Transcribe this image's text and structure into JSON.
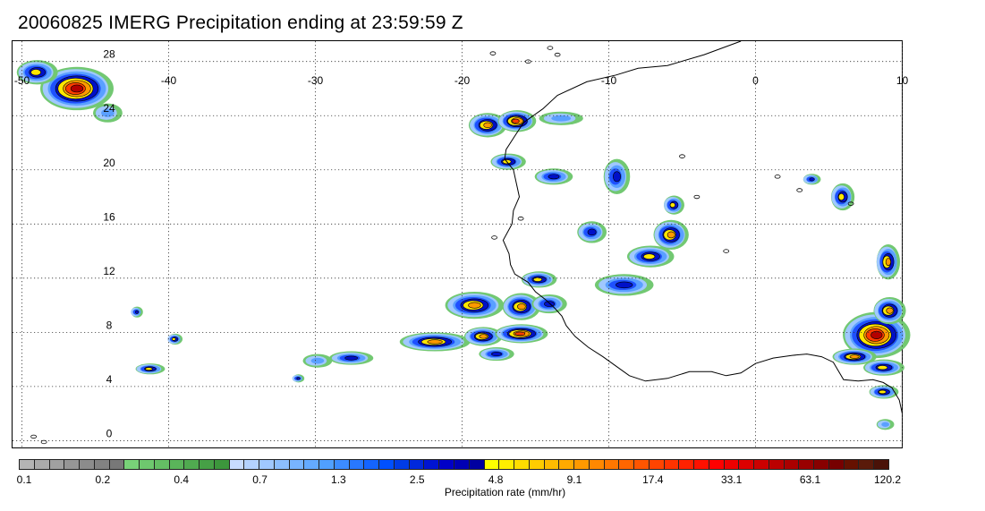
{
  "title": "20060825 IMERG Precipitation ending at 23:59:59 Z",
  "map": {
    "lon_labels": [
      "-50",
      "-40",
      "-30",
      "-20",
      "-10",
      "0",
      "10"
    ],
    "lon_values": [
      -50,
      -40,
      -30,
      -20,
      -10,
      0,
      10
    ],
    "lat_labels": [
      "28",
      "24",
      "20",
      "16",
      "12",
      "8",
      "4",
      "0"
    ],
    "lat_values": [
      28,
      24,
      20,
      16,
      12,
      8,
      4,
      0
    ],
    "lon_range": [
      -50,
      10
    ],
    "lat_range": [
      -0.5,
      29.5
    ],
    "gridlines": "dotted",
    "coastline_color": "#000000",
    "coastline": [
      [
        -1.0,
        29.5
      ],
      [
        -3.5,
        28.5
      ],
      [
        -6.0,
        27.7
      ],
      [
        -8.0,
        27.5
      ],
      [
        -9.5,
        27.0
      ],
      [
        -11.5,
        26.5
      ],
      [
        -13.5,
        25.5
      ],
      [
        -14.5,
        24.5
      ],
      [
        -15.8,
        23.5
      ],
      [
        -16.4,
        22.5
      ],
      [
        -17.0,
        21.5
      ],
      [
        -17.1,
        20.8
      ],
      [
        -16.5,
        20.0
      ],
      [
        -16.3,
        19.0
      ],
      [
        -16.1,
        18.0
      ],
      [
        -16.5,
        17.0
      ],
      [
        -16.6,
        16.0
      ],
      [
        -17.2,
        14.8
      ],
      [
        -16.8,
        13.8
      ],
      [
        -16.7,
        13.0
      ],
      [
        -16.4,
        12.3
      ],
      [
        -15.5,
        11.7
      ],
      [
        -15.0,
        11.0
      ],
      [
        -14.3,
        10.4
      ],
      [
        -13.7,
        9.8
      ],
      [
        -13.2,
        9.2
      ],
      [
        -12.9,
        8.5
      ],
      [
        -12.3,
        7.7
      ],
      [
        -11.4,
        6.9
      ],
      [
        -10.4,
        6.2
      ],
      [
        -9.5,
        5.5
      ],
      [
        -8.6,
        4.8
      ],
      [
        -7.5,
        4.4
      ],
      [
        -6.0,
        4.6
      ],
      [
        -4.5,
        5.1
      ],
      [
        -3.0,
        5.1
      ],
      [
        -2.0,
        4.8
      ],
      [
        -1.0,
        5.0
      ],
      [
        0.0,
        5.7
      ],
      [
        1.2,
        6.1
      ],
      [
        2.5,
        6.3
      ],
      [
        3.5,
        6.4
      ],
      [
        4.5,
        6.2
      ],
      [
        5.3,
        5.8
      ],
      [
        6.0,
        4.5
      ],
      [
        7.0,
        4.4
      ],
      [
        8.0,
        4.5
      ],
      [
        8.7,
        4.3
      ],
      [
        9.3,
        3.9
      ],
      [
        9.8,
        3.0
      ],
      [
        10.0,
        2.0
      ]
    ],
    "islands": [
      [
        -17.8,
        15.0
      ],
      [
        -16.0,
        16.4
      ],
      [
        -13.5,
        28.5
      ],
      [
        -15.5,
        28.0
      ],
      [
        -17.9,
        28.6
      ],
      [
        -14.0,
        29.0
      ],
      [
        -5.0,
        21.0
      ],
      [
        -4.0,
        18.0
      ],
      [
        1.5,
        19.5
      ],
      [
        3.0,
        18.5
      ],
      [
        -2.0,
        14.0
      ],
      [
        6.5,
        17.5
      ],
      [
        -49.2,
        0.3
      ],
      [
        -48.5,
        -0.1
      ]
    ],
    "rain_cells": [
      {
        "lon": -46.3,
        "lat": 26.0,
        "rx": 2.5,
        "ry": 1.6,
        "level": 9
      },
      {
        "lon": -49.0,
        "lat": 27.2,
        "rx": 1.4,
        "ry": 0.9,
        "level": 6
      },
      {
        "lon": -44.2,
        "lat": 24.2,
        "rx": 1.0,
        "ry": 0.7,
        "level": 3
      },
      {
        "lon": -18.3,
        "lat": 23.3,
        "rx": 1.3,
        "ry": 0.9,
        "level": 7
      },
      {
        "lon": -16.3,
        "lat": 23.6,
        "rx": 1.3,
        "ry": 0.8,
        "level": 8
      },
      {
        "lon": -13.3,
        "lat": 23.8,
        "rx": 1.5,
        "ry": 0.5,
        "level": 3
      },
      {
        "lon": -16.9,
        "lat": 20.6,
        "rx": 1.2,
        "ry": 0.6,
        "level": 6
      },
      {
        "lon": -13.8,
        "lat": 19.5,
        "rx": 1.3,
        "ry": 0.6,
        "level": 5
      },
      {
        "lon": -9.5,
        "lat": 19.5,
        "rx": 0.9,
        "ry": 1.3,
        "level": 5
      },
      {
        "lon": -5.6,
        "lat": 17.4,
        "rx": 0.7,
        "ry": 0.7,
        "level": 6
      },
      {
        "lon": -11.2,
        "lat": 15.4,
        "rx": 1.0,
        "ry": 0.8,
        "level": 5
      },
      {
        "lon": -5.8,
        "lat": 15.2,
        "rx": 1.2,
        "ry": 1.1,
        "level": 7
      },
      {
        "lon": -7.2,
        "lat": 13.6,
        "rx": 1.6,
        "ry": 0.8,
        "level": 6
      },
      {
        "lon": -9.0,
        "lat": 11.5,
        "rx": 2.0,
        "ry": 0.8,
        "level": 5
      },
      {
        "lon": -14.8,
        "lat": 11.9,
        "rx": 1.2,
        "ry": 0.6,
        "level": 6
      },
      {
        "lon": -19.2,
        "lat": 10.0,
        "rx": 2.0,
        "ry": 1.0,
        "level": 7
      },
      {
        "lon": -16.0,
        "lat": 9.9,
        "rx": 1.3,
        "ry": 1.0,
        "level": 7
      },
      {
        "lon": -14.1,
        "lat": 10.1,
        "rx": 1.2,
        "ry": 0.7,
        "level": 5
      },
      {
        "lon": -21.9,
        "lat": 7.3,
        "rx": 2.4,
        "ry": 0.7,
        "level": 7
      },
      {
        "lon": -18.6,
        "lat": 7.7,
        "rx": 1.3,
        "ry": 0.7,
        "level": 7
      },
      {
        "lon": -16.0,
        "lat": 7.9,
        "rx": 1.8,
        "ry": 0.7,
        "level": 8
      },
      {
        "lon": -17.7,
        "lat": 6.4,
        "rx": 1.2,
        "ry": 0.5,
        "level": 5
      },
      {
        "lon": -29.9,
        "lat": 5.9,
        "rx": 1.0,
        "ry": 0.5,
        "level": 3
      },
      {
        "lon": -27.6,
        "lat": 6.1,
        "rx": 1.5,
        "ry": 0.5,
        "level": 5
      },
      {
        "lon": -41.3,
        "lat": 5.3,
        "rx": 1.0,
        "ry": 0.4,
        "level": 6
      },
      {
        "lon": -39.6,
        "lat": 7.5,
        "rx": 0.5,
        "ry": 0.4,
        "level": 6
      },
      {
        "lon": -42.2,
        "lat": 9.5,
        "rx": 0.4,
        "ry": 0.4,
        "level": 5
      },
      {
        "lon": -31.2,
        "lat": 4.6,
        "rx": 0.4,
        "ry": 0.3,
        "level": 5
      },
      {
        "lon": 8.2,
        "lat": 7.8,
        "rx": 2.3,
        "ry": 1.7,
        "level": 9
      },
      {
        "lon": 9.1,
        "lat": 9.6,
        "rx": 1.1,
        "ry": 1.0,
        "level": 7
      },
      {
        "lon": 6.7,
        "lat": 6.2,
        "rx": 1.5,
        "ry": 0.6,
        "level": 7
      },
      {
        "lon": 8.7,
        "lat": 5.4,
        "rx": 1.4,
        "ry": 0.6,
        "level": 6
      },
      {
        "lon": 9.0,
        "lat": 13.2,
        "rx": 0.8,
        "ry": 1.3,
        "level": 7
      },
      {
        "lon": 5.9,
        "lat": 18.0,
        "rx": 0.8,
        "ry": 1.0,
        "level": 6
      },
      {
        "lon": 3.8,
        "lat": 19.3,
        "rx": 0.6,
        "ry": 0.4,
        "level": 5
      },
      {
        "lon": 8.7,
        "lat": 3.6,
        "rx": 1.0,
        "ry": 0.5,
        "level": 6
      },
      {
        "lon": 8.8,
        "lat": 1.2,
        "rx": 0.6,
        "ry": 0.4,
        "level": 3
      }
    ]
  },
  "colorbar": {
    "colors": [
      "#b4b4b4",
      "#aaaaaa",
      "#a0a0a0",
      "#969696",
      "#8c8c8c",
      "#828282",
      "#787878",
      "#78d278",
      "#6ec86e",
      "#64be64",
      "#5ab45a",
      "#50aa50",
      "#46a046",
      "#3c963c",
      "#c8dcff",
      "#b4d2ff",
      "#a0c8ff",
      "#8cbeff",
      "#78b4ff",
      "#64aaff",
      "#50a0ff",
      "#3c8cff",
      "#2878ff",
      "#1464ff",
      "#0050ff",
      "#003ce6",
      "#0028dc",
      "#0014d2",
      "#0000c8",
      "#0000b4",
      "#0000a0",
      "#ffff00",
      "#ffee00",
      "#ffdd00",
      "#ffcc00",
      "#ffbb00",
      "#ffaa00",
      "#ff9900",
      "#ff8800",
      "#ff7700",
      "#ff6600",
      "#ff5500",
      "#ff4400",
      "#ff3300",
      "#ff2200",
      "#ff1100",
      "#ff0000",
      "#ee0000",
      "#dd0000",
      "#cc0000",
      "#bb0000",
      "#aa0000",
      "#990000",
      "#880000",
      "#770000",
      "#661100",
      "#5a1a0a",
      "#4a1208"
    ],
    "tick_labels": [
      "0.1",
      "0.2",
      "0.4",
      "0.7",
      "1.3",
      "2.5",
      "4.8",
      "9.1",
      "17.4",
      "33.1",
      "63.1",
      "120.2"
    ],
    "tick_steps": [
      0,
      5,
      10,
      15,
      20,
      25,
      30,
      35,
      40,
      45,
      50,
      55
    ],
    "label": "Precipitation rate (mm/hr)"
  }
}
